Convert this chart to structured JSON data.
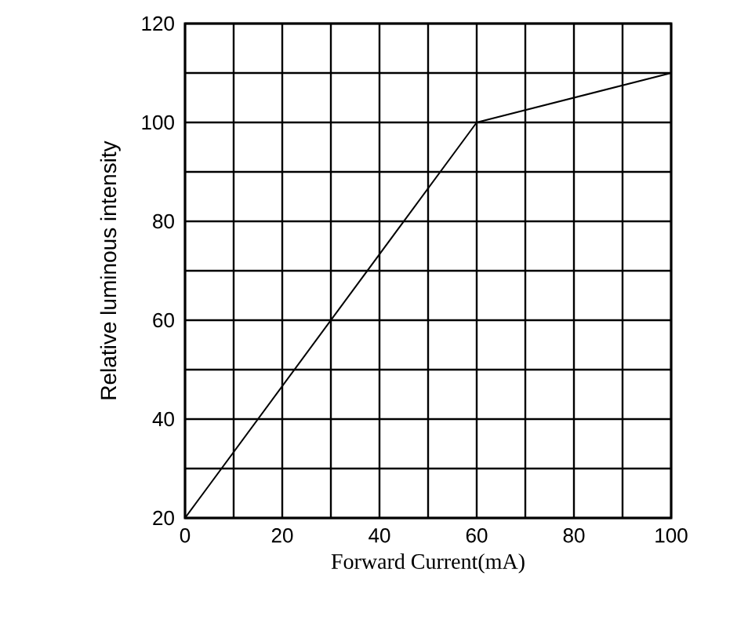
{
  "chart_data": {
    "type": "line",
    "xlabel": "Forward Current(mA)",
    "ylabel": "Relative luminous intensity",
    "x": [
      0,
      60,
      100
    ],
    "series": [
      {
        "color": "#000000",
        "values": [
          20,
          100,
          110
        ]
      }
    ],
    "xlim": [
      0,
      100
    ],
    "ylim": [
      20,
      120
    ],
    "xticks": [
      0,
      {
        "value": 10,
        "label": null
      },
      20,
      {
        "value": 30,
        "label": null
      },
      40,
      {
        "value": 50,
        "label": null
      },
      60,
      {
        "value": 70,
        "label": null
      },
      80,
      {
        "value": 90,
        "label": null
      },
      100
    ],
    "yticks": [
      20,
      {
        "value": 30,
        "label": null
      },
      40,
      {
        "value": 50,
        "label": null
      },
      60,
      {
        "value": 70,
        "label": null
      },
      80,
      {
        "value": 90,
        "label": null
      },
      100,
      {
        "value": 110,
        "label": null
      },
      120
    ],
    "grid": true,
    "marker": "none",
    "line_style": "solid"
  }
}
